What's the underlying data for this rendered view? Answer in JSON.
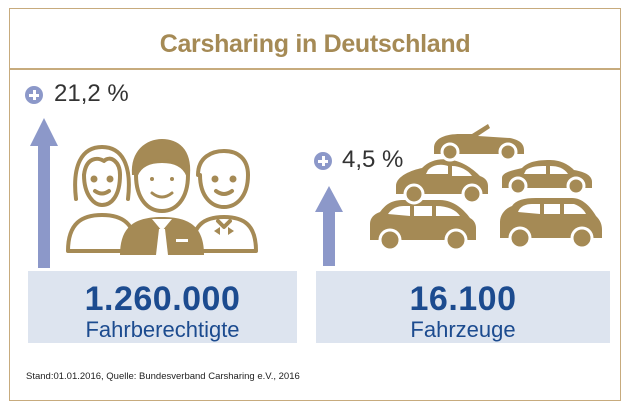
{
  "title": "Carsharing in Deutschland",
  "left": {
    "growth": "21,2 %",
    "value": "1.260.000",
    "label": "Fahrberechtigte",
    "icon": "people-icon"
  },
  "right": {
    "growth": "4,5 %",
    "value": "16.100",
    "label": "Fahrzeuge",
    "icon": "cars-icon"
  },
  "source": "Stand:01.01.2016, Quelle: Bundesverband Carsharing e.V., 2016",
  "colors": {
    "gold": "#a58a55",
    "arrow": "#8c98c9",
    "box": "#dde4ef",
    "number": "#1c4b8f"
  }
}
